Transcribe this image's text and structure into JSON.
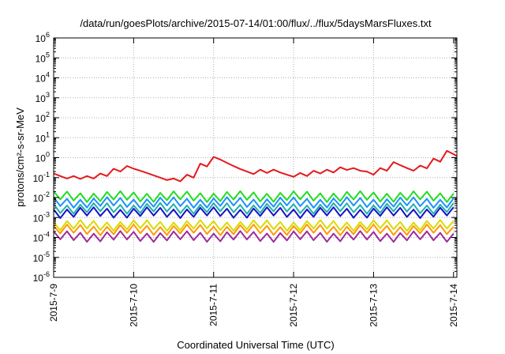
{
  "chart_data": {
    "type": "line",
    "title": "/data/run/goesPlots/archive/2015-07-14/01:00/flux/../flux/5daysMarsFluxes.txt",
    "xlabel": "Coordinated Universal Time (UTC)",
    "ylabel": "protons/cm²-s-sr-MeV",
    "y_scale": "log",
    "ylim": [
      1e-06,
      1000000.0
    ],
    "y_ticks": [
      {
        "label": "10",
        "exp": "-6"
      },
      {
        "label": "10",
        "exp": "-5"
      },
      {
        "label": "10",
        "exp": "-4"
      },
      {
        "label": "10",
        "exp": "-3"
      },
      {
        "label": "10",
        "exp": "-2"
      },
      {
        "label": "10",
        "exp": "-1"
      },
      {
        "label": "10",
        "exp": "0"
      },
      {
        "label": "10",
        "exp": "1"
      },
      {
        "label": "10",
        "exp": "2"
      },
      {
        "label": "10",
        "exp": "3"
      },
      {
        "label": "10",
        "exp": "4"
      },
      {
        "label": "10",
        "exp": "5"
      },
      {
        "label": "10",
        "exp": "6"
      }
    ],
    "xlim": [
      "2015-07-09T00:00",
      "2015-07-14T01:00"
    ],
    "x_ticks": [
      "2015-7-9",
      "2015-7-10",
      "2015-7-11",
      "2015-7-12",
      "2015-7-13",
      "2015-7-14"
    ],
    "grid": true,
    "series": [
      {
        "color": "#e41a1c",
        "data": [
          [
            "2015-07-09T00:00",
            0.16
          ],
          [
            "2015-07-09T02:00",
            0.12
          ],
          [
            "2015-07-09T04:00",
            0.09
          ],
          [
            "2015-07-09T06:00",
            0.12
          ],
          [
            "2015-07-09T08:00",
            0.085
          ],
          [
            "2015-07-09T10:00",
            0.12
          ],
          [
            "2015-07-09T12:00",
            0.09
          ],
          [
            "2015-07-09T14:00",
            0.16
          ],
          [
            "2015-07-09T16:00",
            0.12
          ],
          [
            "2015-07-09T18:00",
            0.28
          ],
          [
            "2015-07-09T20:00",
            0.2
          ],
          [
            "2015-07-09T22:00",
            0.38
          ],
          [
            "2015-07-10T00:00",
            0.28
          ],
          [
            "2015-07-10T02:00",
            0.22
          ],
          [
            "2015-07-10T04:00",
            0.17
          ],
          [
            "2015-07-10T06:00",
            0.13
          ],
          [
            "2015-07-10T08:00",
            0.1
          ],
          [
            "2015-07-10T10:00",
            0.075
          ],
          [
            "2015-07-10T12:00",
            0.09
          ],
          [
            "2015-07-10T14:00",
            0.065
          ],
          [
            "2015-07-10T16:00",
            0.14
          ],
          [
            "2015-07-10T18:00",
            0.1
          ],
          [
            "2015-07-10T20:00",
            0.5
          ],
          [
            "2015-07-10T22:00",
            0.36
          ],
          [
            "2015-07-11T00:00",
            1.1
          ],
          [
            "2015-07-11T02:00",
            0.8
          ],
          [
            "2015-07-11T04:00",
            0.55
          ],
          [
            "2015-07-11T06:00",
            0.38
          ],
          [
            "2015-07-11T08:00",
            0.27
          ],
          [
            "2015-07-11T10:00",
            0.2
          ],
          [
            "2015-07-11T12:00",
            0.15
          ],
          [
            "2015-07-11T14:00",
            0.25
          ],
          [
            "2015-07-11T16:00",
            0.17
          ],
          [
            "2015-07-11T18:00",
            0.25
          ],
          [
            "2015-07-11T20:00",
            0.18
          ],
          [
            "2015-07-11T22:00",
            0.14
          ],
          [
            "2015-07-12T00:00",
            0.11
          ],
          [
            "2015-07-12T02:00",
            0.17
          ],
          [
            "2015-07-12T04:00",
            0.12
          ],
          [
            "2015-07-12T06:00",
            0.22
          ],
          [
            "2015-07-12T08:00",
            0.16
          ],
          [
            "2015-07-12T10:00",
            0.25
          ],
          [
            "2015-07-12T12:00",
            0.18
          ],
          [
            "2015-07-12T14:00",
            0.33
          ],
          [
            "2015-07-12T16:00",
            0.24
          ],
          [
            "2015-07-12T18:00",
            0.3
          ],
          [
            "2015-07-12T20:00",
            0.22
          ],
          [
            "2015-07-12T22:00",
            0.2
          ],
          [
            "2015-07-13T00:00",
            0.14
          ],
          [
            "2015-07-13T02:00",
            0.3
          ],
          [
            "2015-07-13T04:00",
            0.22
          ],
          [
            "2015-07-13T06:00",
            0.6
          ],
          [
            "2015-07-13T08:00",
            0.42
          ],
          [
            "2015-07-13T10:00",
            0.3
          ],
          [
            "2015-07-13T12:00",
            0.22
          ],
          [
            "2015-07-13T14:00",
            0.4
          ],
          [
            "2015-07-13T16:00",
            0.29
          ],
          [
            "2015-07-13T18:00",
            0.9
          ],
          [
            "2015-07-13T20:00",
            0.62
          ],
          [
            "2015-07-13T22:00",
            2.2
          ],
          [
            "2015-07-14T00:00",
            1.5
          ],
          [
            "2015-07-14T01:00",
            1.2
          ]
        ]
      },
      {
        "color": "#22dd22",
        "base": 0.007,
        "amp": 2.6,
        "period_h": 4
      },
      {
        "color": "#1e90ff",
        "base": 0.0035,
        "amp": 2.6,
        "period_h": 4
      },
      {
        "color": "#20b2aa",
        "base": 0.0018,
        "amp": 2.6,
        "period_h": 4
      },
      {
        "color": "#1414c8",
        "base": 0.0011,
        "amp": 2.6,
        "period_h": 4
      },
      {
        "color": "#dada00",
        "base": 0.00025,
        "amp": 2.6,
        "period_h": 4
      },
      {
        "color": "#ff9900",
        "base": 0.00015,
        "amp": 2.6,
        "period_h": 4
      },
      {
        "color": "#9b2d9b",
        "base": 7e-05,
        "amp": 2.6,
        "period_h": 4
      }
    ]
  }
}
